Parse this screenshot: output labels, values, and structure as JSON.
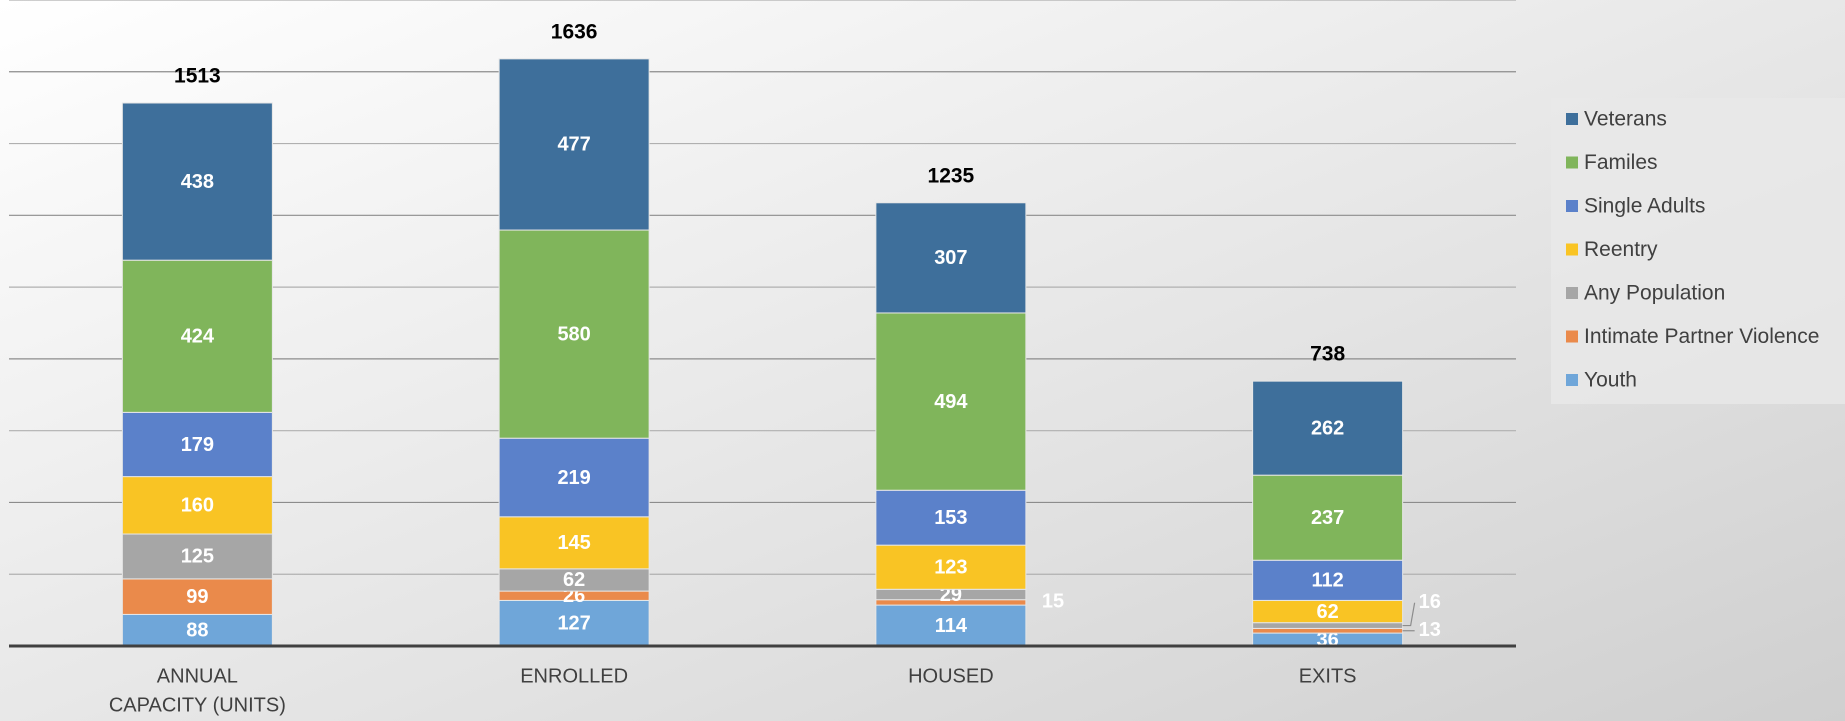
{
  "chart_data": {
    "type": "stacked_bar",
    "categories": [
      [
        "ANNUAL",
        "CAPACITY (UNITS)"
      ],
      [
        "ENROLLED"
      ],
      [
        "HOUSED"
      ],
      [
        "EXITS"
      ]
    ],
    "series": [
      {
        "name": "Youth",
        "color": "#6fa6d9",
        "values": [
          88,
          127,
          114,
          36
        ]
      },
      {
        "name": "Intimate Partner Violence",
        "color": "#ea8a4b",
        "values": [
          99,
          26,
          15,
          13
        ]
      },
      {
        "name": "Any Population",
        "color": "#a6a6a6",
        "values": [
          125,
          62,
          29,
          16
        ]
      },
      {
        "name": "Reentry",
        "color": "#f9c424",
        "values": [
          160,
          145,
          123,
          62
        ]
      },
      {
        "name": "Single Adults",
        "color": "#5b81ca",
        "values": [
          179,
          219,
          153,
          112
        ]
      },
      {
        "name": "Familes",
        "color": "#80b55b",
        "values": [
          424,
          580,
          494,
          237
        ]
      },
      {
        "name": "Veterans",
        "color": "#3e6f9b",
        "values": [
          438,
          477,
          307,
          262
        ]
      }
    ],
    "totals": [
      1513,
      1636,
      1235,
      738
    ],
    "ylim": [
      0,
      1800
    ],
    "yticks": [
      0,
      200,
      400,
      600,
      800,
      1000,
      1200,
      1400,
      1600,
      1800
    ],
    "grid": true,
    "legend": "right"
  }
}
